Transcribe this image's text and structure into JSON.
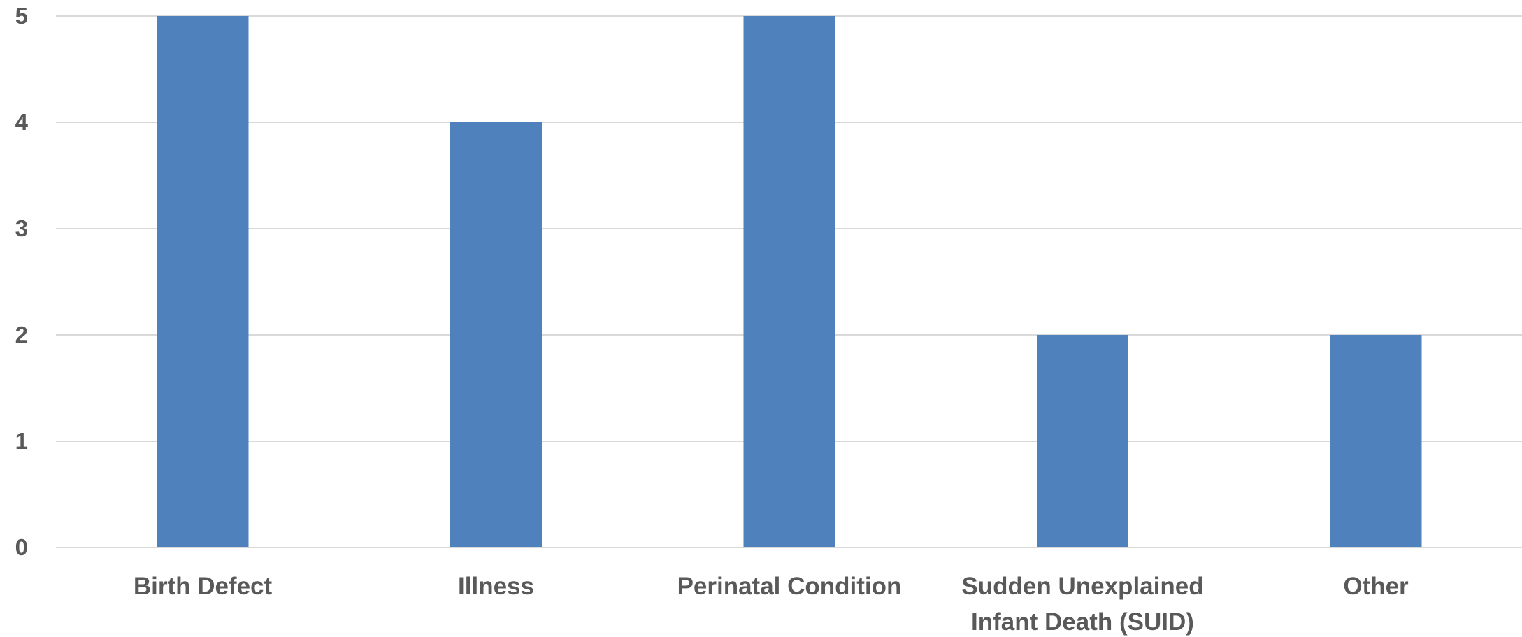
{
  "chart_data": {
    "type": "bar",
    "categories": [
      [
        "Birth Defect"
      ],
      [
        "Illness"
      ],
      [
        "Perinatal Condition"
      ],
      [
        "Sudden Unexplained",
        "Infant Death (SUID)"
      ],
      [
        "Other"
      ]
    ],
    "values": [
      5,
      4,
      5,
      2,
      2
    ],
    "ylim": [
      0,
      5
    ],
    "yticks": [
      0,
      1,
      2,
      3,
      4,
      5
    ],
    "grid": true,
    "bar_color": "#4f81bd",
    "title": "",
    "xlabel": "",
    "ylabel": ""
  }
}
